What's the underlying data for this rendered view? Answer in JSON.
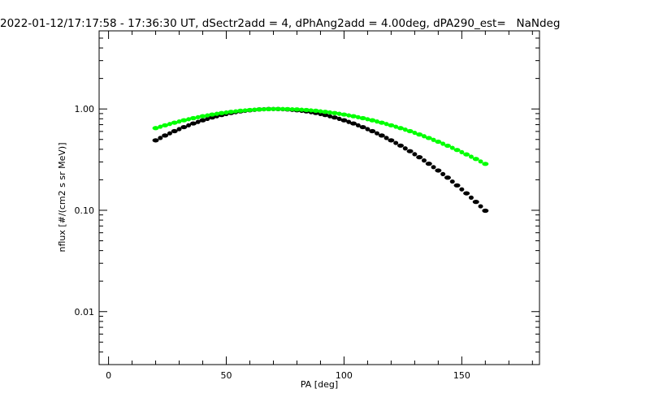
{
  "chart_data": {
    "type": "scatter",
    "title": "2022-01-12/17:17:58 - 17:36:30 UT, dSectr2add = 4, dPhAng2add = 4.00deg, dPA290_est=   NaNdeg",
    "xlabel": "PA [deg]",
    "ylabel": "nflux [#/(cm2 s sr MeV)]",
    "xlim": [
      -4,
      183
    ],
    "ylim": [
      0.003,
      5.9
    ],
    "yscale": "log",
    "grid": false,
    "xticks": [
      0,
      50,
      100,
      150
    ],
    "xtick_labels": [
      "0",
      "50",
      "100",
      "150"
    ],
    "yticks": [
      1.0,
      0.1,
      0.01
    ],
    "ytick_labels": [
      "1.00",
      "0.10",
      "0.01"
    ],
    "x": [
      20,
      24,
      28,
      32,
      36,
      40,
      44,
      48,
      52,
      56,
      60,
      64,
      68,
      72,
      76,
      80,
      84,
      88,
      92,
      96,
      100,
      104,
      108,
      112,
      116,
      120,
      124,
      128,
      132,
      136,
      140,
      144,
      148,
      152,
      156,
      160
    ],
    "series": [
      {
        "name": "black",
        "color": "#000000",
        "values": [
          0.49,
          0.547,
          0.604,
          0.662,
          0.719,
          0.773,
          0.824,
          0.871,
          0.912,
          0.946,
          0.972,
          0.99,
          0.999,
          0.999,
          0.99,
          0.972,
          0.946,
          0.912,
          0.871,
          0.824,
          0.773,
          0.719,
          0.662,
          0.604,
          0.547,
          0.49,
          0.435,
          0.383,
          0.334,
          0.288,
          0.247,
          0.21,
          0.176,
          0.147,
          0.121,
          0.099
        ]
      },
      {
        "name": "green",
        "color": "#00ff00",
        "values": [
          0.647,
          0.69,
          0.732,
          0.773,
          0.812,
          0.848,
          0.881,
          0.911,
          0.937,
          0.96,
          0.977,
          0.99,
          0.997,
          1.0,
          0.997,
          0.99,
          0.977,
          0.96,
          0.937,
          0.911,
          0.881,
          0.848,
          0.812,
          0.773,
          0.732,
          0.69,
          0.647,
          0.604,
          0.56,
          0.517,
          0.475,
          0.434,
          0.394,
          0.356,
          0.321,
          0.287
        ]
      }
    ]
  }
}
